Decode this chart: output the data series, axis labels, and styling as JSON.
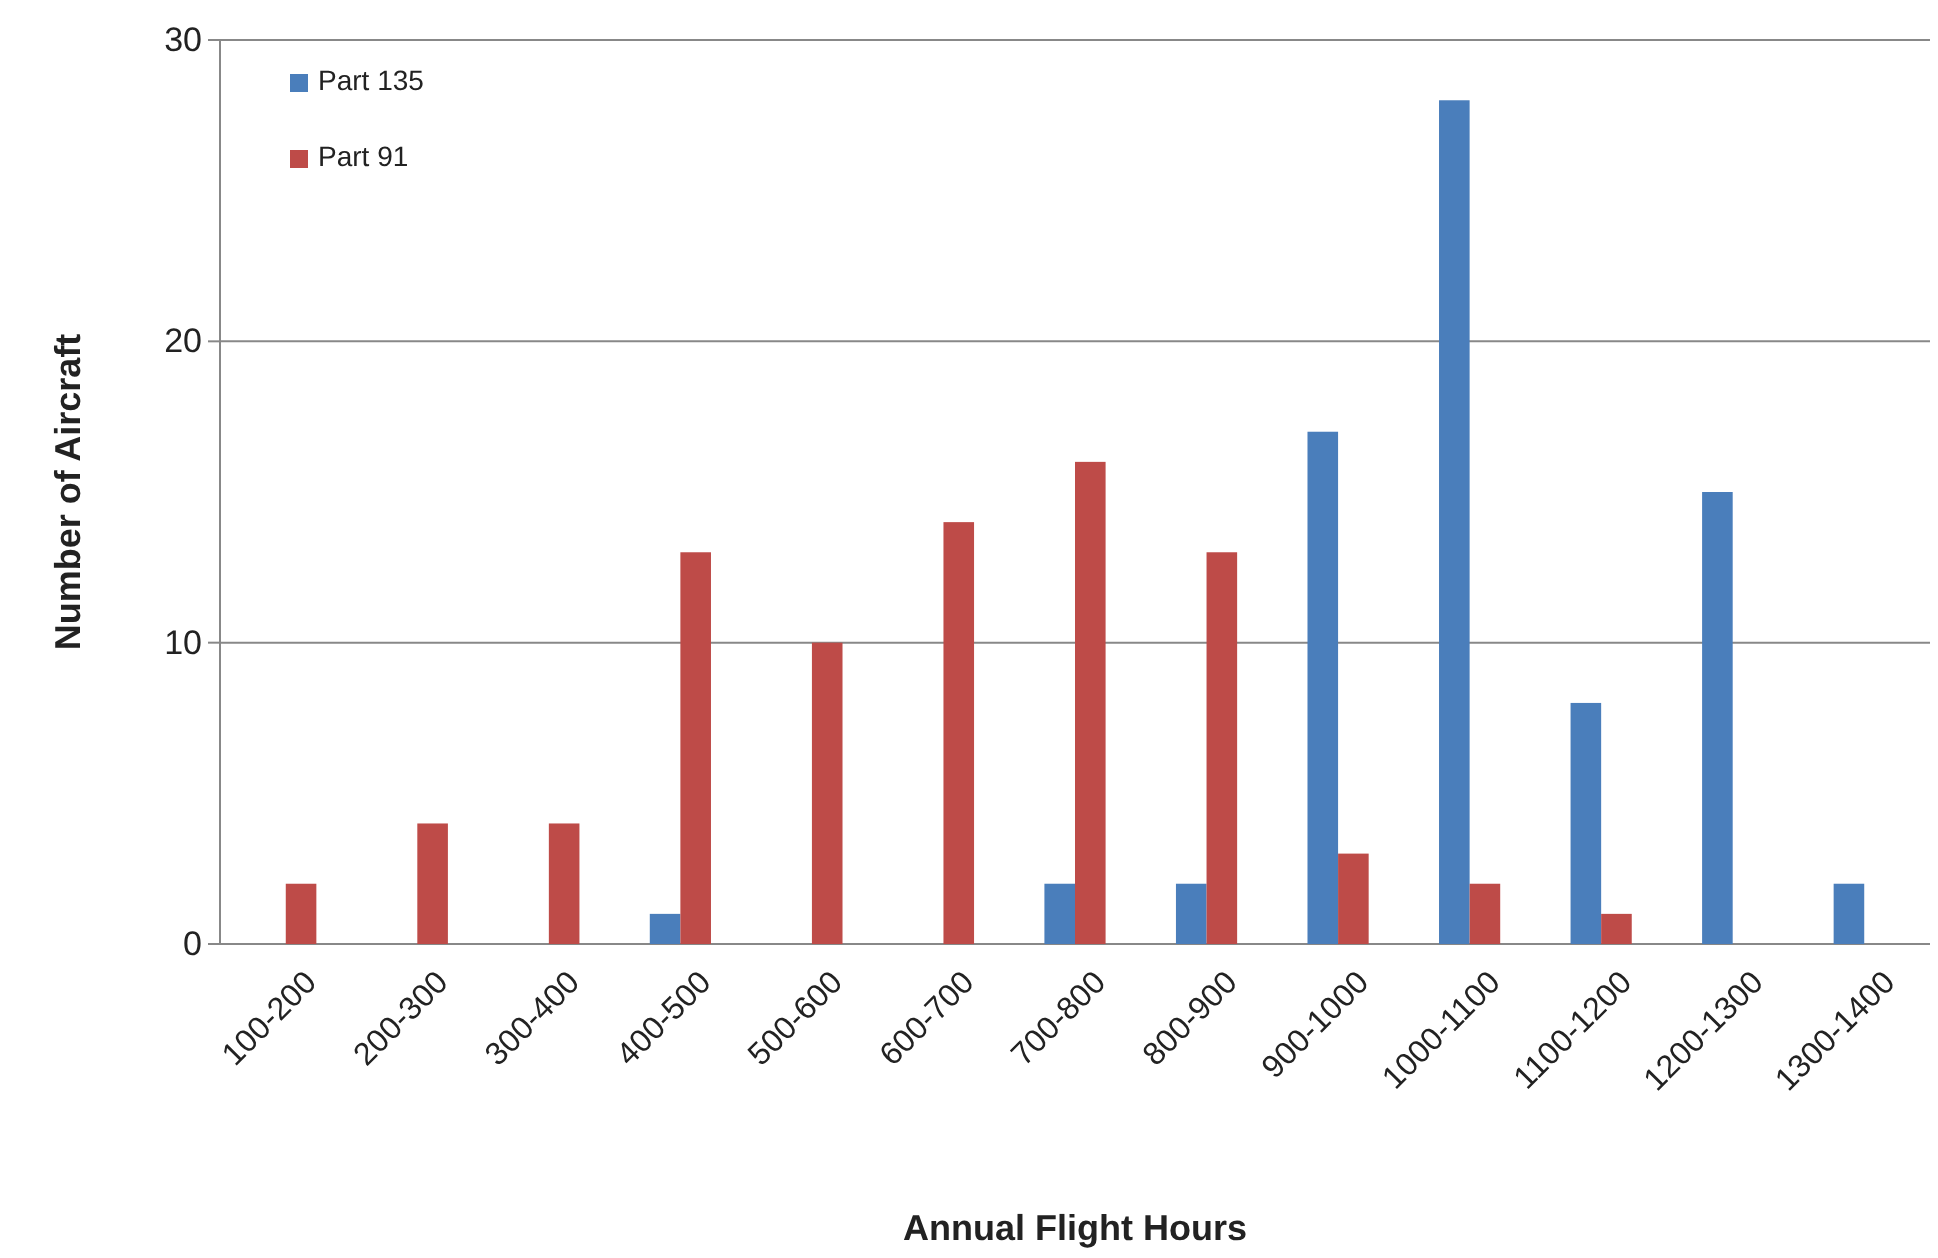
{
  "chart_data": {
    "type": "bar",
    "xlabel": "Annual Flight Hours",
    "ylabel": "Number of Aircraft",
    "categories": [
      "100-200",
      "200-300",
      "300-400",
      "400-500",
      "500-600",
      "600-700",
      "700-800",
      "800-900",
      "900-1000",
      "1000-1100",
      "1100-1200",
      "1200-1300",
      "1300-1400"
    ],
    "series": [
      {
        "name": "Part 135",
        "color": "#4a7ebb",
        "values": [
          0,
          0,
          0,
          1,
          0,
          0,
          2,
          2,
          17,
          28,
          8,
          15,
          2
        ]
      },
      {
        "name": "Part 91",
        "color": "#be4b48",
        "values": [
          2,
          4,
          4,
          13,
          10,
          14,
          16,
          13,
          3,
          2,
          1,
          0,
          0
        ]
      }
    ],
    "ylim": [
      0,
      30
    ],
    "yticks": [
      0,
      10,
      20,
      30
    ],
    "grid": "y",
    "legend": "top left"
  }
}
